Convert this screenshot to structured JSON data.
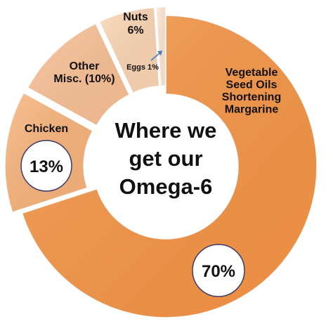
{
  "chart_data": {
    "type": "pie",
    "title_lines": [
      "Where we",
      "get our",
      "Omega-6"
    ],
    "slices": [
      {
        "key": "veg",
        "name_lines": [
          "Vegetable",
          "Seed Oils",
          "",
          "Shortening",
          "",
          "Margarine"
        ],
        "value": 70,
        "badge": "70%",
        "color": "#F79646"
      },
      {
        "key": "chicken",
        "name_lines": [
          "Chicken"
        ],
        "value": 13,
        "badge": "13%",
        "color": "#F9B47B"
      },
      {
        "key": "misc",
        "name_lines": [
          "Other",
          "Misc. (10%)"
        ],
        "value": 10,
        "badge": "",
        "color": "#FAC195"
      },
      {
        "key": "nuts",
        "name_lines": [
          "Nuts",
          "6%"
        ],
        "value": 6,
        "badge": "",
        "color": "#FCD6B4"
      },
      {
        "key": "eggs",
        "name_lines": [
          "Eggs 1%"
        ],
        "value": 1,
        "badge": "",
        "color": "#FDE6D0"
      }
    ]
  }
}
